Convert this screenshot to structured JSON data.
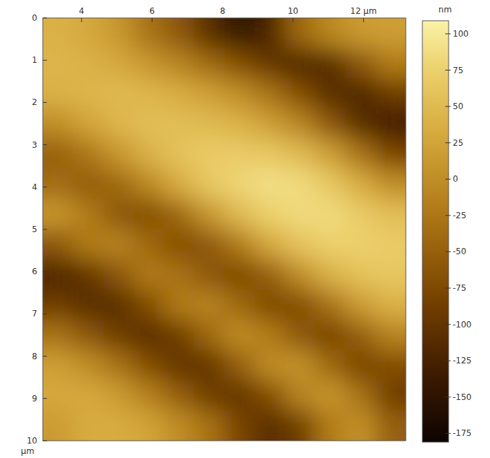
{
  "chart_data": {
    "type": "heatmap",
    "xlim": [
      2.9,
      13.2
    ],
    "ylim": [
      0,
      10
    ],
    "xticks": [
      4,
      6,
      8,
      10,
      {
        "value": 12,
        "label": "12 µm"
      }
    ],
    "yticks": [
      0,
      1,
      2,
      3,
      4,
      5,
      6,
      7,
      8,
      9,
      10
    ],
    "ylabel": "µm",
    "z": [
      [
        40,
        30,
        10,
        -30,
        -60,
        -110,
        -150,
        -120,
        -40,
        -5,
        15,
        20
      ],
      [
        45,
        40,
        30,
        10,
        -10,
        -40,
        -70,
        -100,
        -120,
        -110,
        -60,
        -20
      ],
      [
        40,
        45,
        50,
        45,
        35,
        20,
        0,
        -30,
        -70,
        -110,
        -120,
        -90
      ],
      [
        0,
        25,
        45,
        55,
        55,
        50,
        40,
        20,
        -10,
        -60,
        -110,
        -130
      ],
      [
        -50,
        -25,
        10,
        40,
        60,
        70,
        70,
        65,
        50,
        20,
        -30,
        -80
      ],
      [
        -35,
        -55,
        -40,
        -5,
        35,
        65,
        80,
        90,
        85,
        65,
        35,
        0
      ],
      [
        10,
        -20,
        -60,
        -70,
        -40,
        10,
        50,
        75,
        85,
        85,
        70,
        55
      ],
      [
        -60,
        -20,
        -10,
        -40,
        -70,
        -60,
        -20,
        30,
        60,
        75,
        75,
        70
      ],
      [
        -120,
        -100,
        -60,
        -20,
        -30,
        -60,
        -75,
        -50,
        0,
        40,
        60,
        65
      ],
      [
        -90,
        -110,
        -110,
        -70,
        -20,
        -10,
        -40,
        -75,
        -70,
        -30,
        15,
        40
      ],
      [
        -30,
        -60,
        -90,
        -110,
        -90,
        -40,
        0,
        -20,
        -60,
        -80,
        -50,
        -10
      ],
      [
        20,
        0,
        -30,
        -70,
        -100,
        -100,
        -50,
        0,
        5,
        -40,
        -80,
        -70
      ],
      [
        30,
        30,
        15,
        -15,
        -50,
        -90,
        -100,
        -70,
        -10,
        10,
        -30,
        -90
      ],
      [
        15,
        35,
        35,
        25,
        0,
        -30,
        -80,
        -110,
        -90,
        -20,
        5,
        -50
      ]
    ],
    "colorbar": {
      "label": "nm",
      "range": [
        -181,
        109
      ],
      "ticks": [
        100,
        75,
        50,
        25,
        0,
        -25,
        -50,
        -75,
        -100,
        -125,
        -150,
        -175
      ]
    }
  }
}
